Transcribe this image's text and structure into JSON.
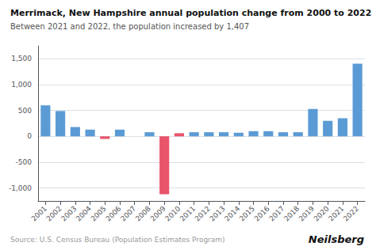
{
  "chart_data": {
    "type": "bar",
    "title": "Merrimack, New Hampshire annual population change from 2000 to 2022",
    "subtitle": "Between 2021 and 2022, the population increased by 1,407",
    "source": "Source: U.S. Census Bureau (Population Estimates Program)",
    "branding": "Neilsberg",
    "categories": [
      "2001",
      "2002",
      "2003",
      "2004",
      "2005",
      "2006",
      "2007",
      "2008",
      "2009",
      "2010",
      "2011",
      "2012",
      "2013",
      "2014",
      "2015",
      "2016",
      "2017",
      "2018",
      "2019",
      "2020",
      "2021",
      "2022"
    ],
    "values": [
      600,
      490,
      180,
      130,
      -50,
      130,
      0,
      80,
      -1120,
      60,
      80,
      80,
      80,
      70,
      100,
      100,
      80,
      80,
      530,
      300,
      350,
      1407
    ],
    "colors": [
      "#5B9BD5",
      "#5B9BD5",
      "#5B9BD5",
      "#5B9BD5",
      "#E8546A",
      "#5B9BD5",
      "#5B9BD5",
      "#5B9BD5",
      "#E8546A",
      "#E8546A",
      "#5B9BD5",
      "#5B9BD5",
      "#5B9BD5",
      "#5B9BD5",
      "#5B9BD5",
      "#5B9BD5",
      "#5B9BD5",
      "#5B9BD5",
      "#5B9BD5",
      "#5B9BD5",
      "#5B9BD5",
      "#5B9BD5"
    ],
    "ylim": [
      -1250,
      1750
    ],
    "yticks": [
      {
        "value": -1000,
        "label": "-1,000"
      },
      -500,
      0,
      500,
      {
        "value": 1000,
        "label": "1,000"
      },
      {
        "value": 1500,
        "label": "1,500"
      }
    ],
    "grid": true
  }
}
